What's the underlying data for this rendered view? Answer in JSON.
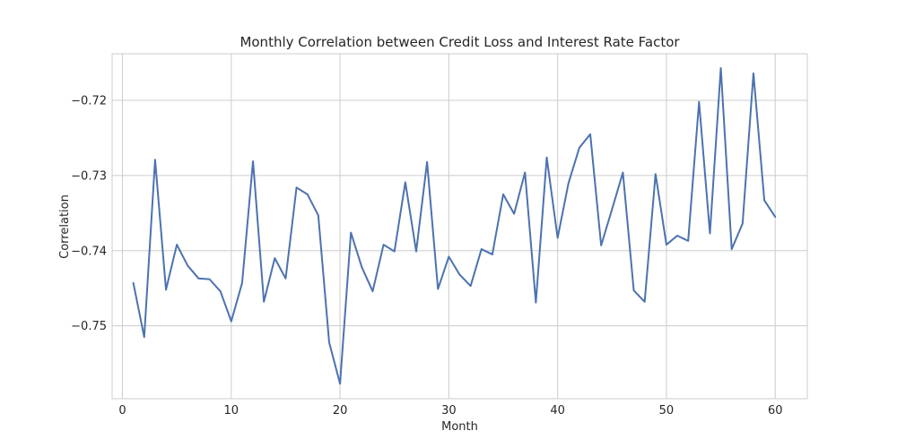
{
  "chart_data": {
    "type": "line",
    "title": "Monthly Correlation between Credit Loss and Interest Rate Factor",
    "xlabel": "Month",
    "ylabel": "Correlation",
    "xlim": [
      -0.95,
      62.95
    ],
    "ylim": [
      -0.7597,
      -0.7138
    ],
    "xticks": [
      0,
      10,
      20,
      30,
      40,
      50,
      60
    ],
    "xtick_labels": [
      "0",
      "10",
      "20",
      "30",
      "40",
      "50",
      "60"
    ],
    "yticks": [
      -0.75,
      -0.74,
      -0.73,
      -0.72
    ],
    "ytick_labels": [
      "−0.75",
      "−0.74",
      "−0.73",
      "−0.72"
    ],
    "grid": true,
    "color": "#4c72b0",
    "x": [
      1,
      2,
      3,
      4,
      5,
      6,
      7,
      8,
      9,
      10,
      11,
      12,
      13,
      14,
      15,
      16,
      17,
      18,
      19,
      20,
      21,
      22,
      23,
      24,
      25,
      26,
      27,
      28,
      29,
      30,
      31,
      32,
      33,
      34,
      35,
      36,
      37,
      38,
      39,
      40,
      41,
      42,
      43,
      44,
      45,
      46,
      47,
      48,
      49,
      50,
      51,
      52,
      53,
      54,
      55,
      56,
      57,
      58,
      59,
      60
    ],
    "series": [
      {
        "values": [
          -0.7443,
          -0.7515,
          -0.7279,
          -0.7452,
          -0.7392,
          -0.742,
          -0.7437,
          -0.7438,
          -0.7454,
          -0.7494,
          -0.7443,
          -0.7281,
          -0.7468,
          -0.741,
          -0.7437,
          -0.7316,
          -0.7325,
          -0.7353,
          -0.7522,
          -0.7577,
          -0.7376,
          -0.7422,
          -0.7454,
          -0.7392,
          -0.7401,
          -0.7309,
          -0.7401,
          -0.7282,
          -0.7451,
          -0.7408,
          -0.7432,
          -0.7447,
          -0.7398,
          -0.7405,
          -0.7325,
          -0.7351,
          -0.7296,
          -0.7469,
          -0.7276,
          -0.7383,
          -0.731,
          -0.7263,
          -0.7245,
          -0.7393,
          -0.7345,
          -0.7296,
          -0.7453,
          -0.7468,
          -0.7298,
          -0.7392,
          -0.738,
          -0.7387,
          -0.7202,
          -0.7377,
          -0.7157,
          -0.7398,
          -0.7364,
          -0.7164,
          -0.7333,
          -0.7355
        ]
      }
    ]
  }
}
